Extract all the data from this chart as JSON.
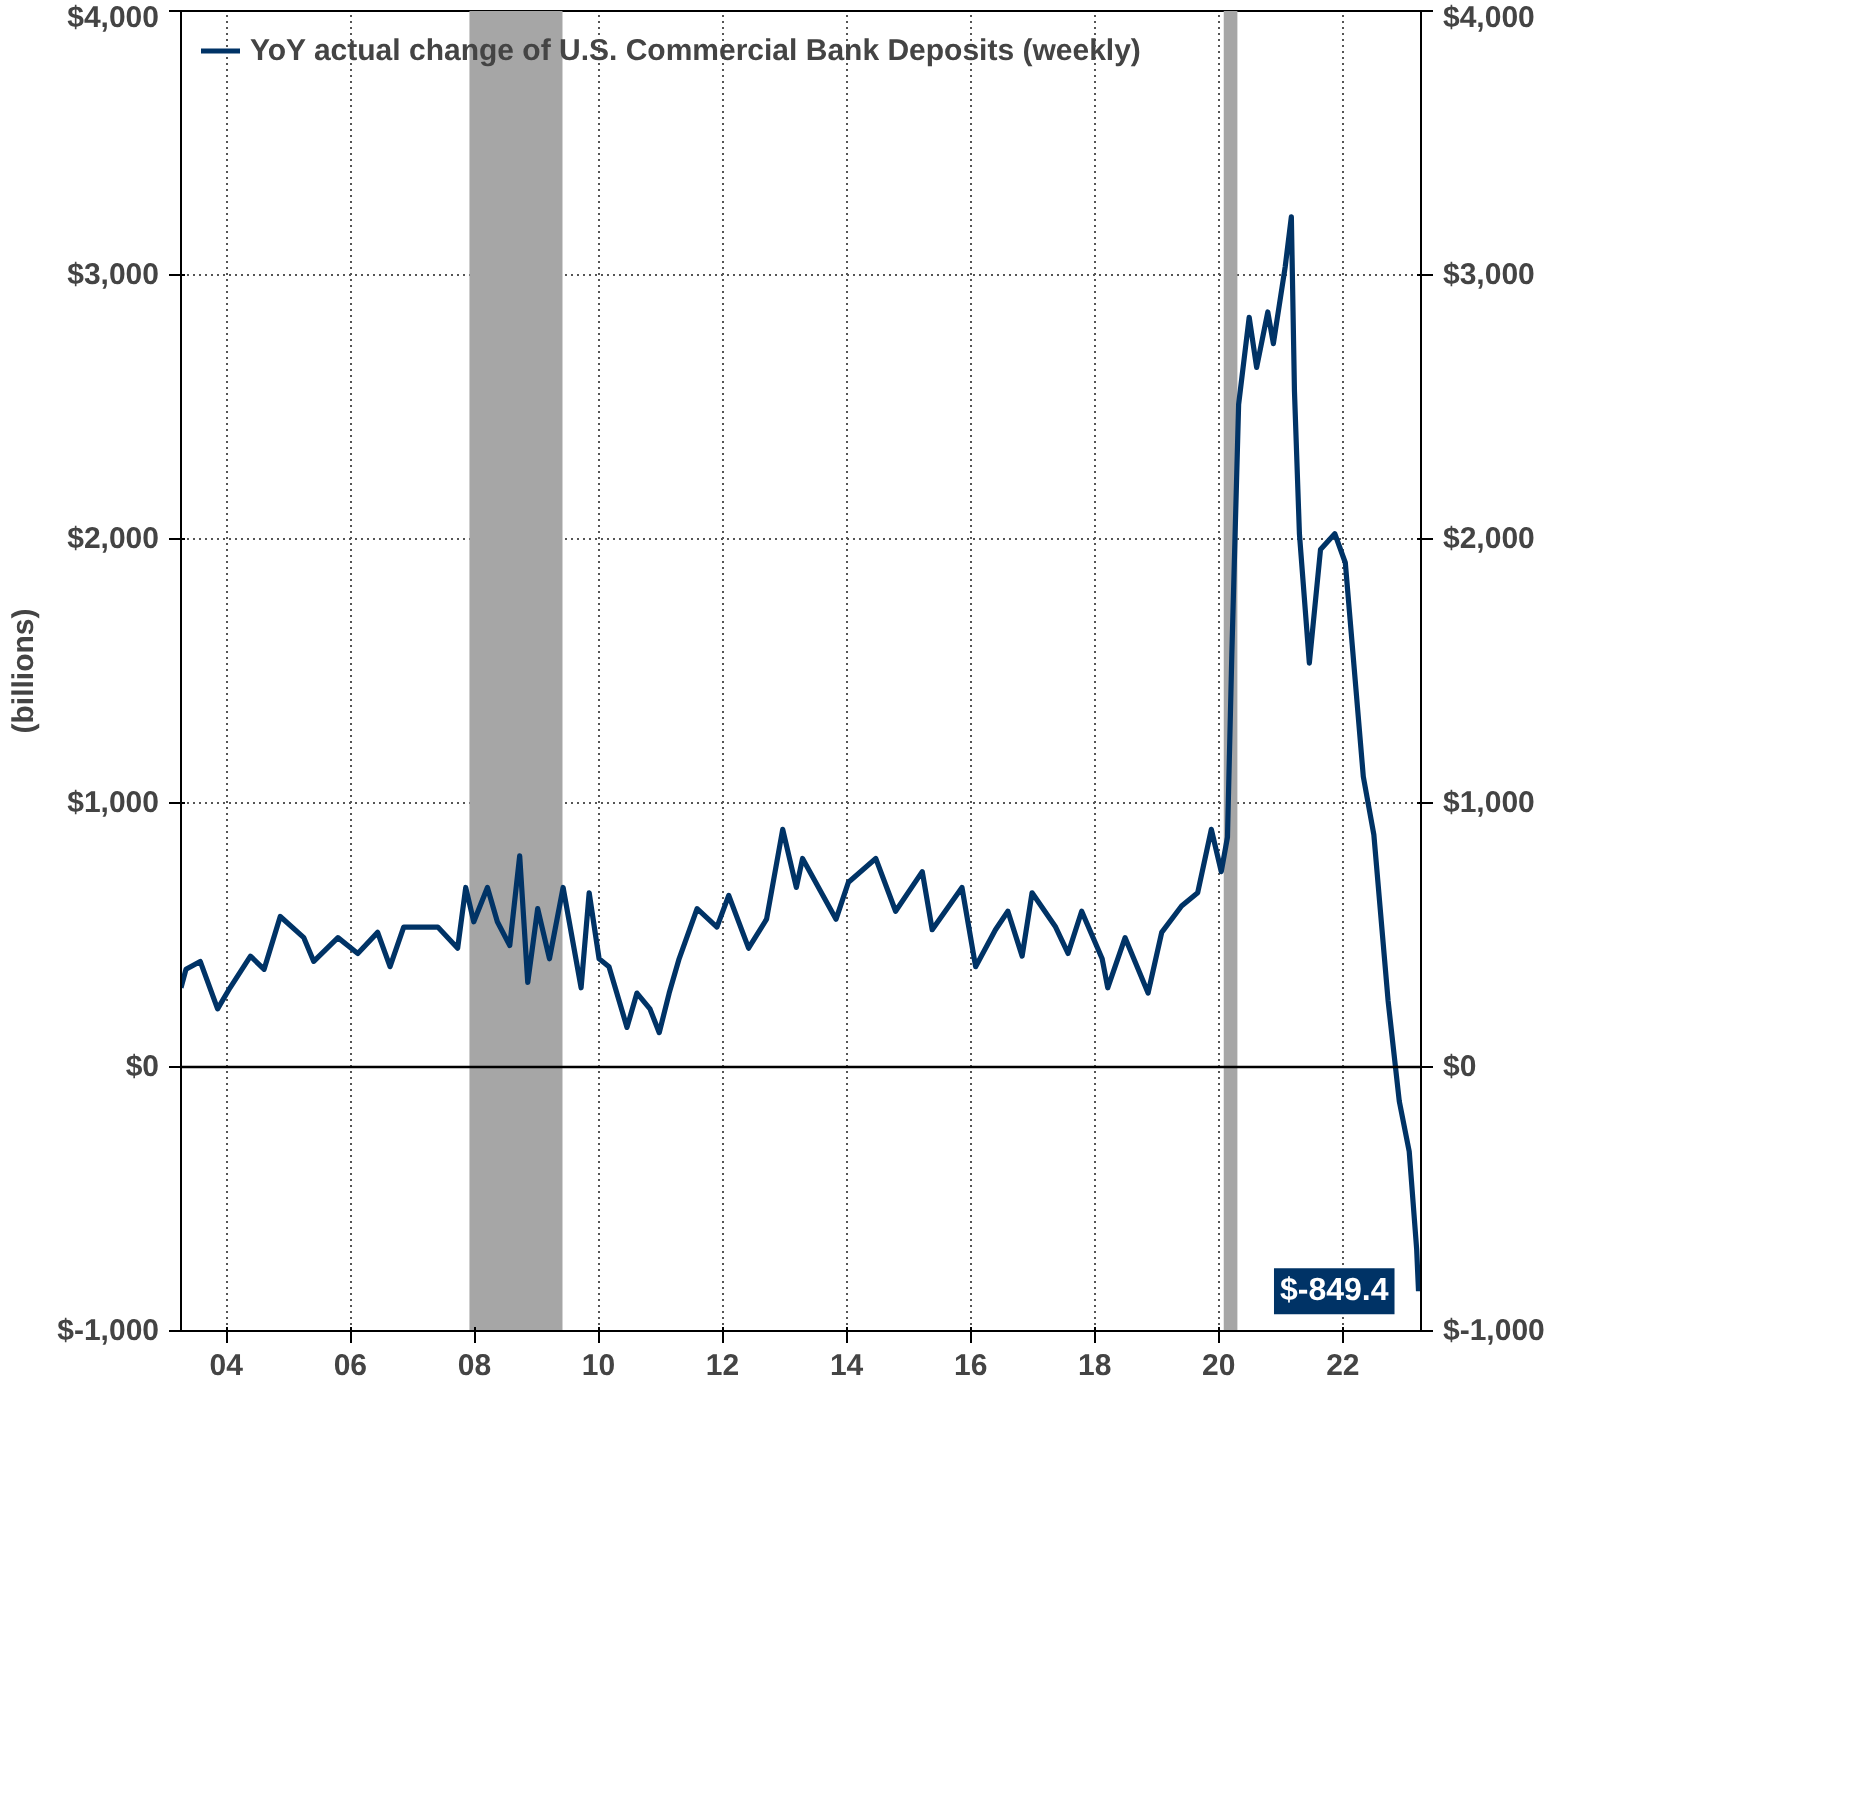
{
  "chart_data": {
    "type": "line",
    "ylabel": "(billions)",
    "xlim": [
      2003.27,
      2023.26
    ],
    "xticks": [
      {
        "value": 2004,
        "label": "04"
      },
      {
        "value": 2006,
        "label": "06"
      },
      {
        "value": 2008,
        "label": "08"
      },
      {
        "value": 2010,
        "label": "10"
      },
      {
        "value": 2012,
        "label": "12"
      },
      {
        "value": 2014,
        "label": "14"
      },
      {
        "value": 2016,
        "label": "16"
      },
      {
        "value": 2018,
        "label": "18"
      },
      {
        "value": 2020,
        "label": "20"
      },
      {
        "value": 2022,
        "label": "22"
      }
    ],
    "ylim": [
      -1000,
      4000
    ],
    "yticks": [
      {
        "value": -1000,
        "label": "$-1,000"
      },
      {
        "value": 0,
        "label": "$0"
      },
      {
        "value": 1000,
        "label": "$1,000"
      },
      {
        "value": 2000,
        "label": "$2,000"
      },
      {
        "value": 3000,
        "label": "$3,000"
      },
      {
        "value": 4000,
        "label": "$4,000"
      }
    ],
    "y2lim": [
      -1000,
      4000
    ],
    "y2ticks": [
      {
        "value": -1000,
        "label": "$-1,000"
      },
      {
        "value": 0,
        "label": "$0"
      },
      {
        "value": 1000,
        "label": "$1,000"
      },
      {
        "value": 2000,
        "label": "$2,000"
      },
      {
        "value": 3000,
        "label": "$3,000"
      },
      {
        "value": 4000,
        "label": "$4,000"
      }
    ],
    "grid": true,
    "legend": "top left",
    "series": [
      {
        "name": "YoY actual change of U.S. Commercial Bank Deposits (weekly)",
        "color": "#003366",
        "x": [
          2003.27,
          2003.35,
          2003.58,
          2003.86,
          2004.06,
          2004.39,
          2004.61,
          2004.87,
          2005.25,
          2005.41,
          2005.8,
          2006.12,
          2006.44,
          2006.64,
          2006.86,
          2007.41,
          2007.73,
          2007.86,
          2007.99,
          2008.21,
          2008.37,
          2008.57,
          2008.73,
          2008.86,
          2009.02,
          2009.21,
          2009.43,
          2009.72,
          2009.85,
          2010.01,
          2010.17,
          2010.46,
          2010.62,
          2010.83,
          2010.98,
          2011.14,
          2011.3,
          2011.59,
          2011.91,
          2012.1,
          2012.42,
          2012.71,
          2012.97,
          2013.19,
          2013.29,
          2013.83,
          2014.03,
          2014.47,
          2014.79,
          2015.22,
          2015.38,
          2015.86,
          2016.08,
          2016.4,
          2016.6,
          2016.83,
          2016.99,
          2017.37,
          2017.57,
          2017.79,
          2018.12,
          2018.21,
          2018.49,
          2018.86,
          2019.08,
          2019.4,
          2019.66,
          2019.88,
          2020.04,
          2020.14,
          2020.21,
          2020.32,
          2020.49,
          2020.61,
          2020.79,
          2020.88,
          2021.07,
          2021.17,
          2021.22,
          2021.3,
          2021.46,
          2021.64,
          2021.87,
          2022.04,
          2022.33,
          2022.5,
          2022.73,
          2022.91,
          2023.07,
          2023.19,
          2023.22
        ],
        "values": [
          300,
          370,
          400,
          220,
          300,
          420,
          370,
          570,
          490,
          400,
          490,
          430,
          510,
          380,
          530,
          530,
          450,
          680,
          550,
          680,
          550,
          460,
          800,
          320,
          600,
          410,
          680,
          300,
          660,
          410,
          380,
          150,
          280,
          220,
          130,
          280,
          410,
          600,
          530,
          650,
          450,
          560,
          900,
          680,
          790,
          560,
          700,
          790,
          590,
          740,
          520,
          680,
          380,
          520,
          590,
          420,
          660,
          530,
          430,
          590,
          410,
          300,
          490,
          280,
          510,
          610,
          660,
          900,
          740,
          870,
          1560,
          2510,
          2840,
          2650,
          2860,
          2740,
          3030,
          3220,
          2560,
          2020,
          1530,
          1960,
          2020,
          1910,
          1100,
          880,
          250,
          -130,
          -320,
          -690,
          -849.4
        ]
      }
    ],
    "ref_lines": [
      {
        "axis": "y",
        "value": 0,
        "color": "#000000"
      }
    ],
    "bands": [
      {
        "axis": "x",
        "from": 2007.92,
        "to": 2009.42,
        "color": "#a6a6a6"
      },
      {
        "axis": "x",
        "from": 2020.08,
        "to": 2020.3,
        "color": "#a6a6a6"
      }
    ],
    "annotations": [
      {
        "text": "$-849.4",
        "x": 2023.22,
        "y": -849.4
      }
    ]
  }
}
